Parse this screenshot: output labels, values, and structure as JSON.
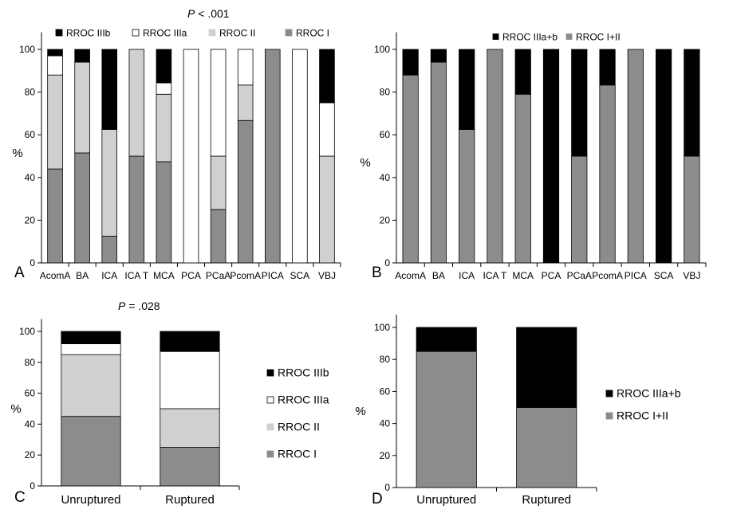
{
  "chart_data": [
    {
      "panel_label": "A",
      "type": "bar",
      "stacked": true,
      "p_value": "P < .001",
      "ylabel": "%",
      "ylim": [
        0,
        100
      ],
      "yticks": [
        "0",
        "20",
        "40",
        "60",
        "80",
        "100"
      ],
      "categories": [
        "AcomA",
        "BA",
        "ICA",
        "ICA T",
        "MCA",
        "PCA",
        "PCaA",
        "PcomA",
        "PICA",
        "SCA",
        "VBJ"
      ],
      "legend_position": "top",
      "series": [
        {
          "name": "RROC I",
          "color": "#8c8c8c",
          "values": [
            44,
            51.5,
            12.5,
            50,
            47.4,
            0,
            25,
            66.7,
            100,
            0,
            0
          ]
        },
        {
          "name": "RROC II",
          "color": "#d0d0d0",
          "values": [
            44,
            42.5,
            50,
            50,
            31.6,
            0,
            25,
            16.6,
            0,
            0,
            50
          ]
        },
        {
          "name": "RROC IIIa",
          "color": "#ffffff",
          "values": [
            9,
            0,
            0,
            0,
            5.3,
            100,
            50,
            16.7,
            0,
            100,
            25
          ]
        },
        {
          "name": "RROC IIIb",
          "color": "#000000",
          "values": [
            3,
            6,
            37.5,
            0,
            15.7,
            0,
            0,
            0,
            0,
            0,
            25
          ]
        }
      ],
      "legend_order": [
        "RROC IIIb",
        "RROC IIIa",
        "RROC II",
        "RROC I"
      ]
    },
    {
      "panel_label": "B",
      "type": "bar",
      "stacked": true,
      "ylabel": "%",
      "ylim": [
        0,
        100
      ],
      "yticks": [
        "0",
        "20",
        "40",
        "60",
        "80",
        "100"
      ],
      "categories": [
        "AcomA",
        "BA",
        "ICA",
        "ICA T",
        "MCA",
        "PCA",
        "PCaA",
        "PcomA",
        "PICA",
        "SCA",
        "VBJ"
      ],
      "legend_position": "top",
      "series": [
        {
          "name": "RROC I+II",
          "color": "#8c8c8c",
          "values": [
            88,
            94,
            62.5,
            100,
            79,
            0,
            50,
            83.3,
            100,
            0,
            50
          ]
        },
        {
          "name": "RROC IIIa+b",
          "color": "#000000",
          "values": [
            12,
            6,
            37.5,
            0,
            21,
            100,
            50,
            16.7,
            0,
            100,
            50
          ]
        }
      ],
      "legend_order": [
        "RROC IIIa+b",
        "RROC I+II"
      ]
    },
    {
      "panel_label": "C",
      "type": "bar",
      "stacked": true,
      "p_value": "P = .028",
      "ylabel": "%",
      "ylim": [
        0,
        100
      ],
      "yticks": [
        "0",
        "20",
        "40",
        "60",
        "80",
        "100"
      ],
      "categories": [
        "Unruptured",
        "Ruptured"
      ],
      "legend_position": "right",
      "series": [
        {
          "name": "RROC I",
          "color": "#8c8c8c",
          "values": [
            45,
            25
          ]
        },
        {
          "name": "RROC II",
          "color": "#d0d0d0",
          "values": [
            40,
            25
          ]
        },
        {
          "name": "RROC IIIa",
          "color": "#ffffff",
          "values": [
            7,
            37
          ]
        },
        {
          "name": "RROC IIIb",
          "color": "#000000",
          "values": [
            8,
            13
          ]
        }
      ],
      "legend_order": [
        "RROC IIIb",
        "RROC IIIa",
        "RROC II",
        "RROC I"
      ]
    },
    {
      "panel_label": "D",
      "type": "bar",
      "stacked": true,
      "ylabel": "%",
      "ylim": [
        0,
        100
      ],
      "yticks": [
        "0",
        "20",
        "40",
        "60",
        "80",
        "100"
      ],
      "categories": [
        "Unruptured",
        "Ruptured"
      ],
      "legend_position": "right",
      "series": [
        {
          "name": "RROC I+II",
          "color": "#8c8c8c",
          "values": [
            85,
            50
          ]
        },
        {
          "name": "RROC IIIa+b",
          "color": "#000000",
          "values": [
            15,
            50
          ]
        }
      ],
      "legend_order": [
        "RROC IIIa+b",
        "RROC I+II"
      ]
    }
  ]
}
